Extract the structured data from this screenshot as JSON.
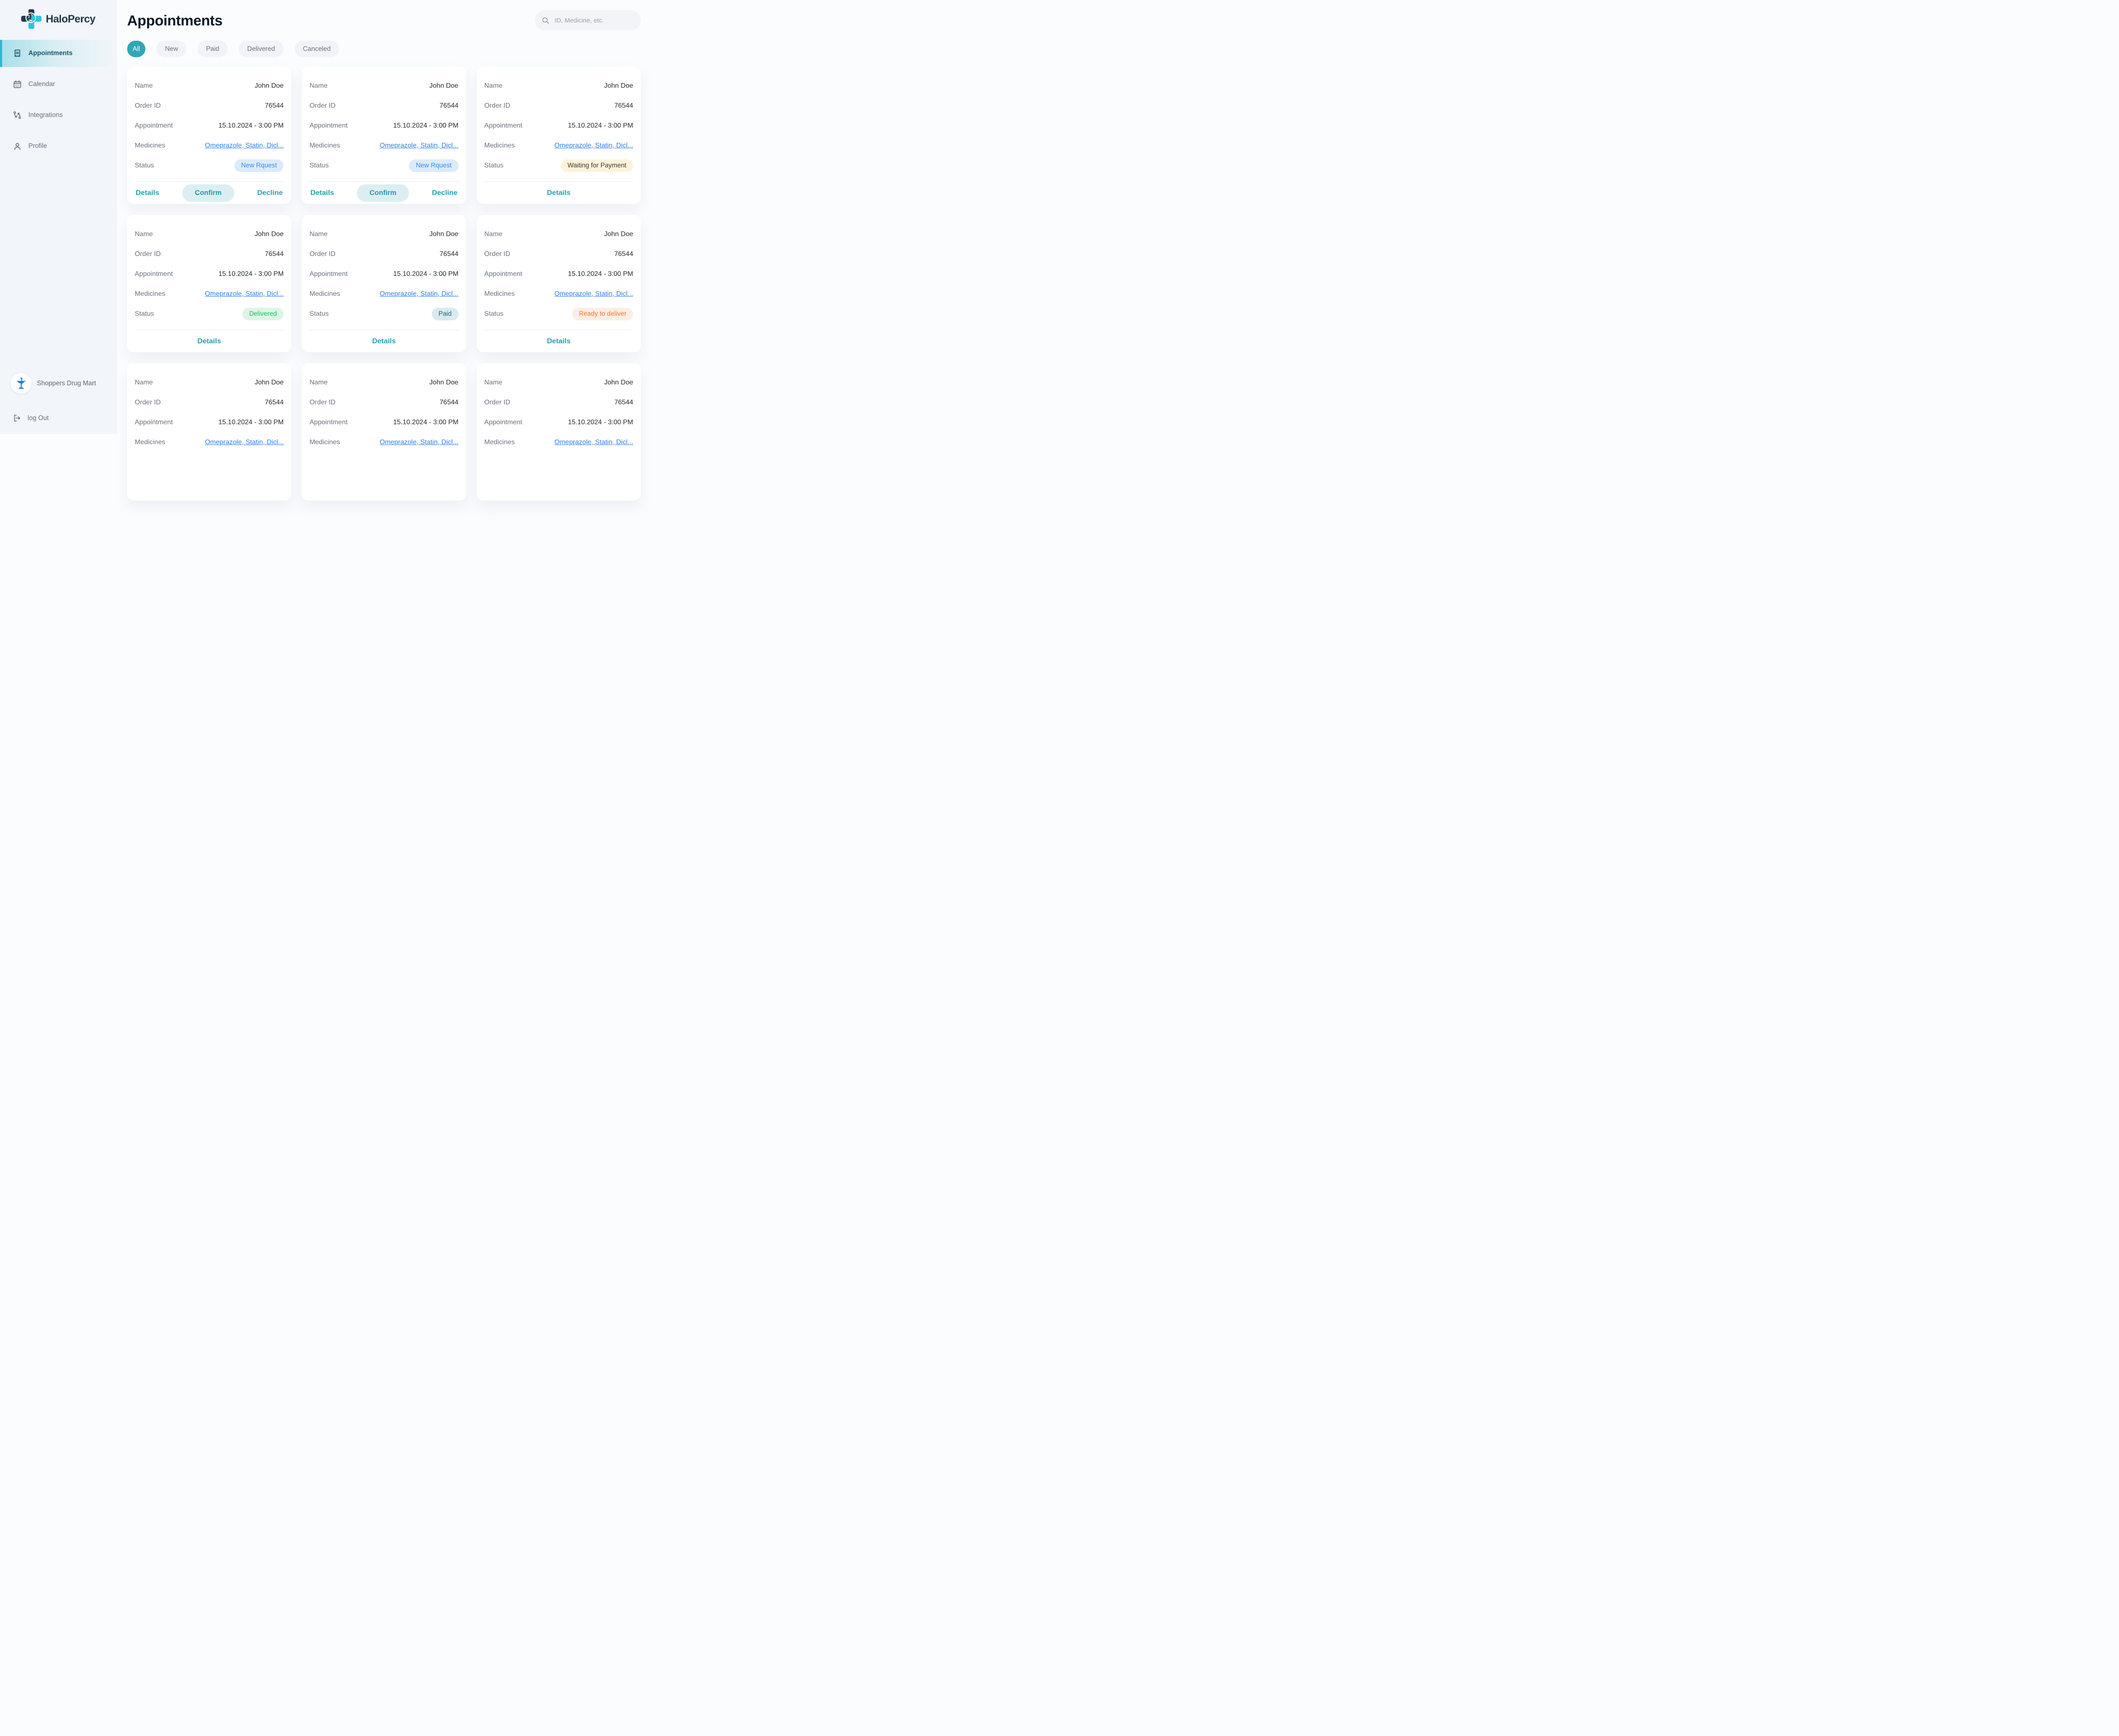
{
  "brand": {
    "name": "HaloPercy"
  },
  "colors": {
    "accent_teal": "#31A6B7",
    "nav_active_text": "#14596B",
    "link_blue": "#2E7EF6",
    "status_new": {
      "bg": "#DCEBFB",
      "fg": "#2E90FA"
    },
    "status_waiting": {
      "bg": "#FCF3DC",
      "fg": "#45391A"
    },
    "status_delivered": {
      "bg": "#DCF6E6",
      "fg": "#1EBE5C"
    },
    "status_paid": {
      "bg": "#D8EAF0",
      "fg": "#15697B"
    },
    "status_ready": {
      "bg": "#FCEEE3",
      "fg": "#EE7A37"
    }
  },
  "sidebar": {
    "items": [
      {
        "label": "Appointments",
        "icon": "receipt-icon",
        "active": true
      },
      {
        "label": "Calendar",
        "icon": "calendar-icon",
        "active": false
      },
      {
        "label": "Integrations",
        "icon": "integrations-icon",
        "active": false
      },
      {
        "label": "Profile",
        "icon": "profile-icon",
        "active": false
      }
    ],
    "account_name": "Shoppers Drug Mart",
    "logout_label": "log Out"
  },
  "header": {
    "title": "Appointments",
    "search_placeholder": "ID, Medicine, etc."
  },
  "filters": [
    {
      "label": "All",
      "active": true
    },
    {
      "label": "New",
      "active": false
    },
    {
      "label": "Paid",
      "active": false
    },
    {
      "label": "Delivered",
      "active": false
    },
    {
      "label": "Canceled",
      "active": false
    }
  ],
  "labels": {
    "name": "Name",
    "order_id": "Order ID",
    "appointment": "Appointment",
    "medicines": "Medicines",
    "status": "Status"
  },
  "actions": {
    "details": "Details",
    "confirm": "Confirm",
    "decline": "Decline"
  },
  "cards": [
    {
      "name": "John Doe",
      "order_id": "76544",
      "appointment": "15.10.2024 - 3:00 PM",
      "medicines": "Omeprazole, Statin, Dicl...",
      "status": {
        "label": "New Rquest",
        "type": "new"
      },
      "footer": "actions"
    },
    {
      "name": "John Doe",
      "order_id": "76544",
      "appointment": "15.10.2024 - 3:00 PM",
      "medicines": "Omeprazole, Statin, Dicl...",
      "status": {
        "label": "New Rquest",
        "type": "new"
      },
      "footer": "actions"
    },
    {
      "name": "John Doe",
      "order_id": "76544",
      "appointment": "15.10.2024 - 3:00 PM",
      "medicines": "Omeprazole, Statin, Dicl...",
      "status": {
        "label": "Waiting for Payment",
        "type": "waiting"
      },
      "footer": "details"
    },
    {
      "name": "John Doe",
      "order_id": "76544",
      "appointment": "15.10.2024 - 3:00 PM",
      "medicines": "Omeprazole, Statin, Dicl...",
      "status": {
        "label": "Delivered",
        "type": "delivered"
      },
      "footer": "details"
    },
    {
      "name": "John Doe",
      "order_id": "76544",
      "appointment": "15.10.2024 - 3:00 PM",
      "medicines": "Omeprazole, Statin, Dicl...",
      "status": {
        "label": "Paid",
        "type": "paid"
      },
      "footer": "details"
    },
    {
      "name": "John Doe",
      "order_id": "76544",
      "appointment": "15.10.2024 - 3:00 PM",
      "medicines": "Omeprazole, Statin, Dicl...",
      "status": {
        "label": "Ready to deliver",
        "type": "ready"
      },
      "footer": "details"
    },
    {
      "name": "John Doe",
      "order_id": "76544",
      "appointment": "15.10.2024 - 3:00 PM",
      "medicines": "Omeprazole, Statin, Dicl..."
    },
    {
      "name": "John Doe",
      "order_id": "76544",
      "appointment": "15.10.2024 - 3:00 PM",
      "medicines": "Omeprazole, Statin, Dicl..."
    },
    {
      "name": "John Doe",
      "order_id": "76544",
      "appointment": "15.10.2024 - 3:00 PM",
      "medicines": "Omeprazole, Statin, Dicl..."
    }
  ]
}
